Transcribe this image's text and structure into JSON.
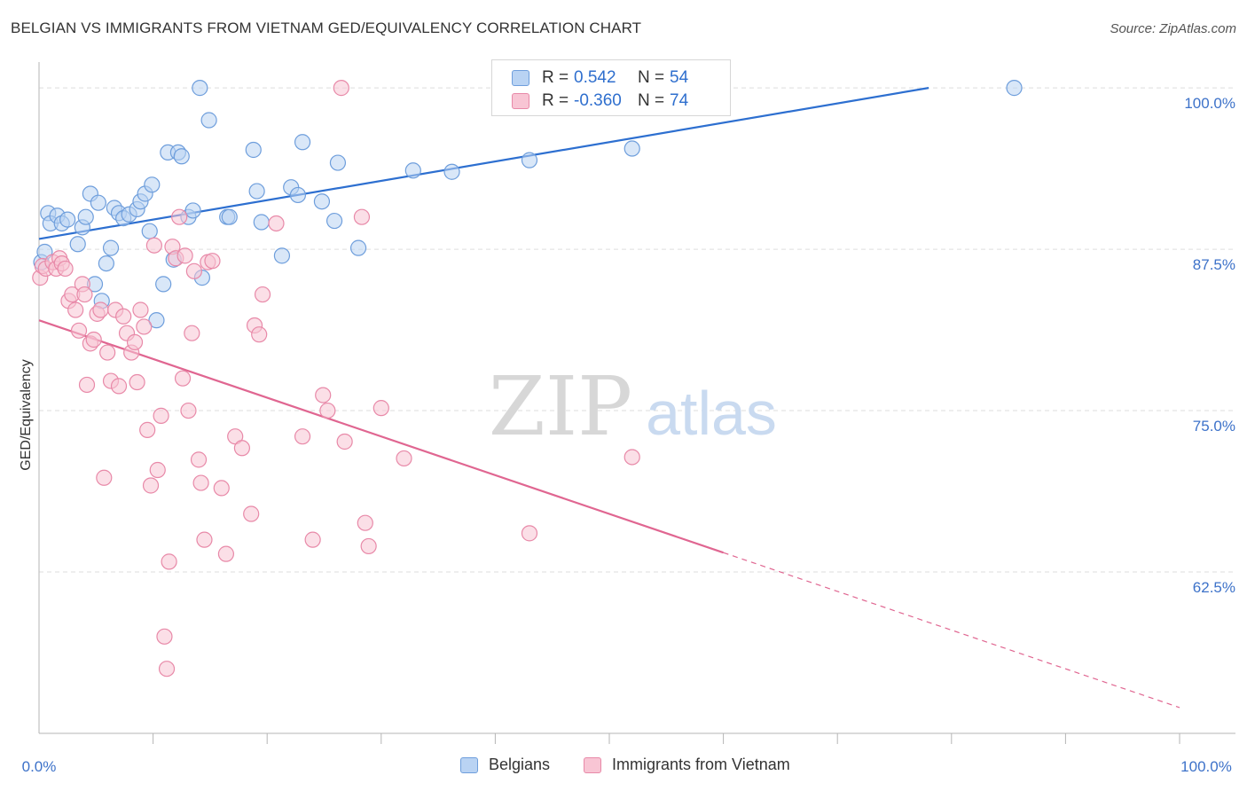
{
  "header": {
    "title": "BELGIAN VS IMMIGRANTS FROM VIETNAM GED/EQUIVALENCY CORRELATION CHART",
    "source": "Source: ZipAtlas.com"
  },
  "watermark": {
    "zip": "ZIP",
    "atlas": "atlas"
  },
  "legend": {
    "rows": [
      {
        "r_label": "R =",
        "r_value": "0.542",
        "n_label": "N =",
        "n_value": "54"
      },
      {
        "r_label": "R =",
        "r_value": "-0.360",
        "n_label": "N =",
        "n_value": "74"
      }
    ],
    "bottom": [
      "Belgians",
      "Immigrants from Vietnam"
    ]
  },
  "colors": {
    "blue_fill": "#b9d3f3",
    "blue_stroke": "#6e9edc",
    "blue_line": "#2d6fd0",
    "pink_fill": "#f8c5d4",
    "pink_stroke": "#e889a8",
    "pink_line": "#e06691",
    "axis_label": "#3d72c9"
  },
  "chart_data": {
    "type": "scatter",
    "title": "BELGIAN VS IMMIGRANTS FROM VIETNAM GED/EQUIVALENCY CORRELATION CHART",
    "xlabel": "",
    "ylabel": "GED/Equivalency",
    "xlim": [
      0,
      100
    ],
    "ylim": [
      50,
      102
    ],
    "x_tick_labels": [
      "0.0%",
      "100.0%"
    ],
    "y_ticks": [
      62.5,
      75.0,
      87.5,
      100.0
    ],
    "y_tick_labels": [
      "62.5%",
      "75.0%",
      "87.5%",
      "100.0%"
    ],
    "grid": true,
    "legend_position": "top-center",
    "series": [
      {
        "name": "Belgians",
        "color": "#6e9edc",
        "r": 0.542,
        "n": 54,
        "trend": {
          "x": [
            0,
            78
          ],
          "y": [
            88.3,
            100.0
          ]
        },
        "points": [
          [
            0.2,
            86.5
          ],
          [
            0.5,
            87.3
          ],
          [
            0.8,
            90.3
          ],
          [
            1.0,
            89.5
          ],
          [
            1.6,
            90.1
          ],
          [
            2.0,
            89.5
          ],
          [
            2.5,
            89.8
          ],
          [
            3.4,
            87.9
          ],
          [
            3.8,
            89.2
          ],
          [
            4.1,
            90.0
          ],
          [
            4.5,
            91.8
          ],
          [
            4.9,
            84.8
          ],
          [
            5.2,
            91.1
          ],
          [
            5.5,
            83.5
          ],
          [
            5.9,
            86.4
          ],
          [
            6.3,
            87.6
          ],
          [
            6.6,
            90.7
          ],
          [
            7.0,
            90.3
          ],
          [
            7.4,
            89.9
          ],
          [
            7.9,
            90.2
          ],
          [
            8.6,
            90.6
          ],
          [
            8.9,
            91.2
          ],
          [
            9.3,
            91.8
          ],
          [
            9.7,
            88.9
          ],
          [
            9.9,
            92.5
          ],
          [
            10.3,
            82.0
          ],
          [
            10.9,
            84.8
          ],
          [
            11.3,
            95.0
          ],
          [
            11.8,
            86.7
          ],
          [
            12.2,
            95.0
          ],
          [
            12.5,
            94.7
          ],
          [
            13.1,
            90.0
          ],
          [
            13.5,
            90.5
          ],
          [
            14.1,
            100.0
          ],
          [
            14.3,
            85.3
          ],
          [
            14.9,
            97.5
          ],
          [
            16.5,
            90.0
          ],
          [
            16.7,
            90.0
          ],
          [
            18.8,
            95.2
          ],
          [
            19.1,
            92.0
          ],
          [
            19.5,
            89.6
          ],
          [
            21.3,
            87.0
          ],
          [
            22.1,
            92.3
          ],
          [
            22.7,
            91.7
          ],
          [
            23.1,
            95.8
          ],
          [
            24.8,
            91.2
          ],
          [
            25.9,
            89.7
          ],
          [
            26.2,
            94.2
          ],
          [
            28.0,
            87.6
          ],
          [
            32.8,
            93.6
          ],
          [
            36.2,
            93.5
          ],
          [
            43.0,
            94.4
          ],
          [
            52.0,
            95.3
          ],
          [
            85.5,
            100.0
          ]
        ]
      },
      {
        "name": "Immigrants from Vietnam",
        "color": "#e889a8",
        "r": -0.36,
        "n": 74,
        "trend": {
          "x": [
            0,
            60
          ],
          "y": [
            82.0,
            64.0
          ]
        },
        "trend_extension": {
          "x": [
            60,
            100
          ],
          "y": [
            64.0,
            52.0
          ]
        },
        "points": [
          [
            0.1,
            85.3
          ],
          [
            0.3,
            86.2
          ],
          [
            0.6,
            86.0
          ],
          [
            1.2,
            86.5
          ],
          [
            1.5,
            86.0
          ],
          [
            1.8,
            86.8
          ],
          [
            2.0,
            86.4
          ],
          [
            2.3,
            86.0
          ],
          [
            2.6,
            83.5
          ],
          [
            2.9,
            84.0
          ],
          [
            3.2,
            82.8
          ],
          [
            3.5,
            81.2
          ],
          [
            3.8,
            84.8
          ],
          [
            4.0,
            84.0
          ],
          [
            4.2,
            77.0
          ],
          [
            4.5,
            80.2
          ],
          [
            4.8,
            80.5
          ],
          [
            5.1,
            82.5
          ],
          [
            5.4,
            82.8
          ],
          [
            5.7,
            69.8
          ],
          [
            6.0,
            79.5
          ],
          [
            6.3,
            77.3
          ],
          [
            6.7,
            82.8
          ],
          [
            7.0,
            76.9
          ],
          [
            7.4,
            82.3
          ],
          [
            7.7,
            81.0
          ],
          [
            8.1,
            79.5
          ],
          [
            8.4,
            80.3
          ],
          [
            8.6,
            77.2
          ],
          [
            8.9,
            82.8
          ],
          [
            9.2,
            81.5
          ],
          [
            9.5,
            73.5
          ],
          [
            9.8,
            69.2
          ],
          [
            10.1,
            87.8
          ],
          [
            10.4,
            70.4
          ],
          [
            10.7,
            74.6
          ],
          [
            11.0,
            57.5
          ],
          [
            11.2,
            55.0
          ],
          [
            11.4,
            63.3
          ],
          [
            11.7,
            87.7
          ],
          [
            12.0,
            86.8
          ],
          [
            12.3,
            90.0
          ],
          [
            12.6,
            77.5
          ],
          [
            12.8,
            87.0
          ],
          [
            13.1,
            75.0
          ],
          [
            13.4,
            81.0
          ],
          [
            13.6,
            85.8
          ],
          [
            14.0,
            71.2
          ],
          [
            14.2,
            69.4
          ],
          [
            14.5,
            65.0
          ],
          [
            14.8,
            86.5
          ],
          [
            15.2,
            86.6
          ],
          [
            16.0,
            69.0
          ],
          [
            16.4,
            63.9
          ],
          [
            17.2,
            73.0
          ],
          [
            17.8,
            72.1
          ],
          [
            18.6,
            67.0
          ],
          [
            18.9,
            81.6
          ],
          [
            19.3,
            80.9
          ],
          [
            19.6,
            84.0
          ],
          [
            20.8,
            89.5
          ],
          [
            23.1,
            73.0
          ],
          [
            24.0,
            65.0
          ],
          [
            24.9,
            76.2
          ],
          [
            25.3,
            75.0
          ],
          [
            26.5,
            100.0
          ],
          [
            26.8,
            72.6
          ],
          [
            28.6,
            66.3
          ],
          [
            28.9,
            64.5
          ],
          [
            28.3,
            90.0
          ],
          [
            30.0,
            75.2
          ],
          [
            32.0,
            71.3
          ],
          [
            43.0,
            65.5
          ],
          [
            52.0,
            71.4
          ]
        ]
      }
    ]
  }
}
